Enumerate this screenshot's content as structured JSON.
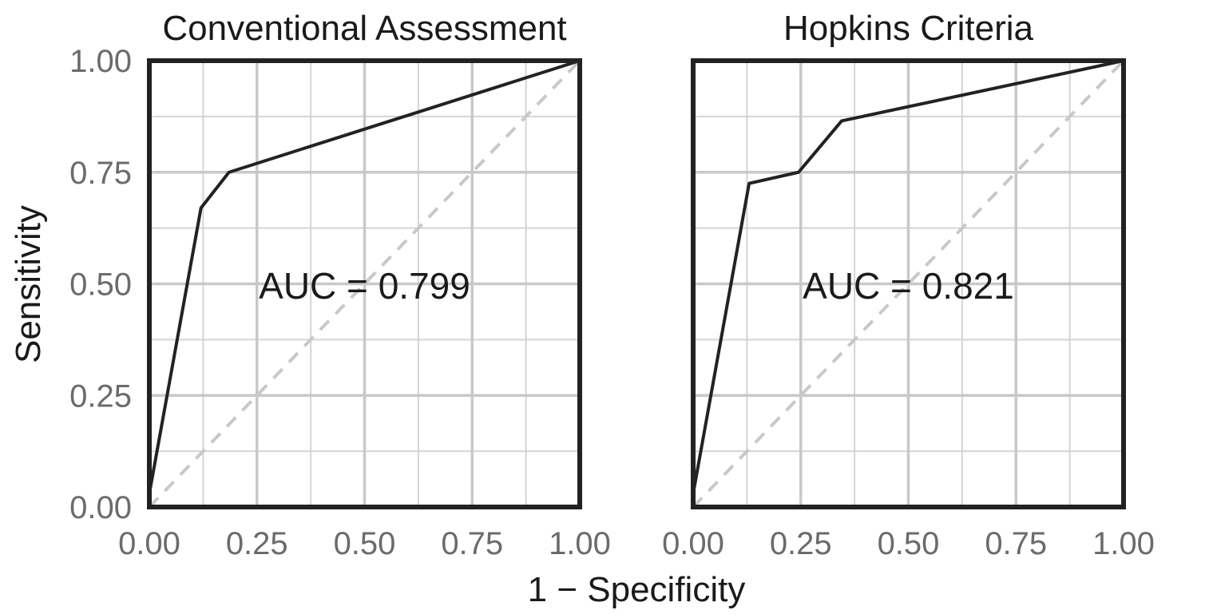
{
  "chart_data": {
    "type": "line",
    "xlabel": "1 − Specificity",
    "ylabel": "Sensitivity",
    "xlim": [
      0,
      1
    ],
    "ylim": [
      0,
      1
    ],
    "x_ticks": [
      "0.00",
      "0.25",
      "0.50",
      "0.75",
      "1.00"
    ],
    "y_ticks": [
      "0.00",
      "0.25",
      "0.50",
      "0.75",
      "1.00"
    ],
    "grid": true,
    "reference_line": "diagonal",
    "panels": [
      {
        "title": "Conventional Assessment",
        "auc_label": "AUC = 0.799",
        "x": [
          0.0,
          0.0,
          0.12,
          0.185,
          1.0
        ],
        "y": [
          0.0,
          0.03,
          0.67,
          0.75,
          1.0
        ]
      },
      {
        "title": "Hopkins Criteria",
        "auc_label": "AUC = 0.821",
        "x": [
          0.0,
          0.0,
          0.13,
          0.245,
          0.345,
          1.0
        ],
        "y": [
          0.0,
          0.03,
          0.725,
          0.75,
          0.865,
          1.0
        ]
      }
    ]
  }
}
